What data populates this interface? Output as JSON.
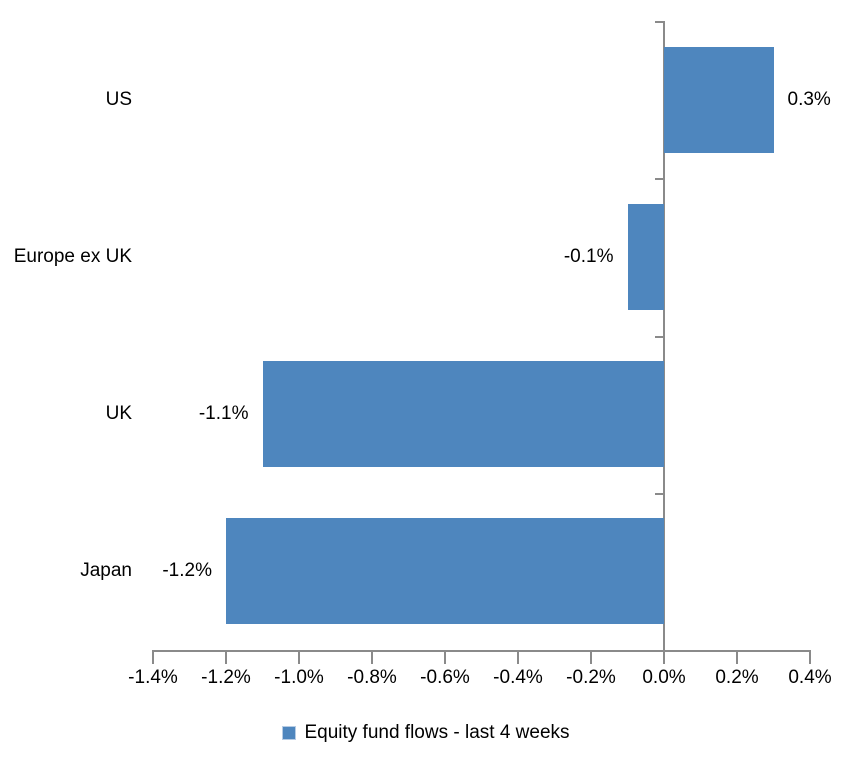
{
  "chart_data": {
    "type": "bar",
    "orientation": "horizontal",
    "title": "",
    "categories": [
      "US",
      "Europe ex UK",
      "UK",
      "Japan"
    ],
    "values": [
      0.3,
      -0.1,
      -1.1,
      -1.2
    ],
    "value_labels": [
      "0.3%",
      "-0.1%",
      "-1.1%",
      "-1.2%"
    ],
    "xlim": [
      -1.4,
      0.4
    ],
    "x_ticks": [
      -1.4,
      -1.2,
      -1.0,
      -0.8,
      -0.6,
      -0.4,
      -0.2,
      0.0,
      0.2,
      0.4
    ],
    "x_tick_labels": [
      "-1.4%",
      "-1.2%",
      "-1.0%",
      "-0.8%",
      "-0.6%",
      "-0.4%",
      "-0.2%",
      "0.0%",
      "0.2%",
      "0.4%"
    ],
    "grid": false,
    "legend_position": "bottom",
    "legend": [
      "Equity fund flows - last 4 weeks"
    ],
    "colors": {
      "bar": "#4E86BE",
      "axis": "#8A8A8A",
      "text": "#000000",
      "background": "#FFFFFF",
      "legend_swatch_border": "#B7CCE4"
    }
  }
}
